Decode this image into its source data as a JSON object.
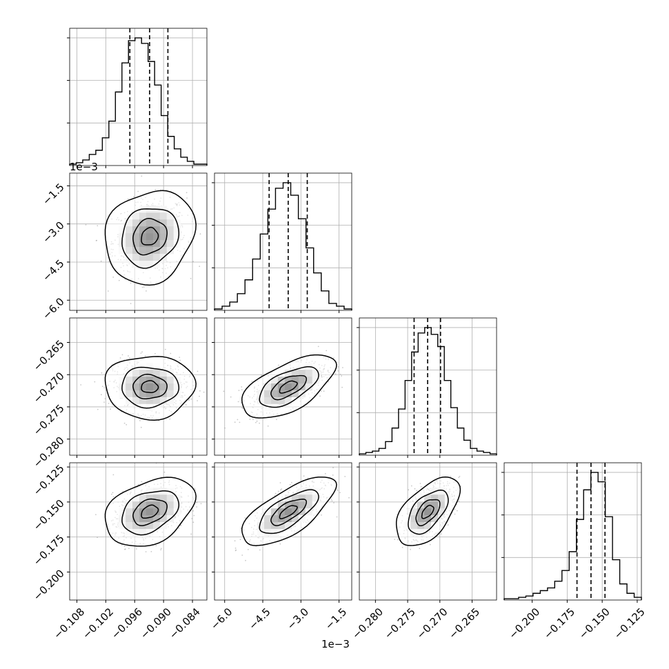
{
  "chart_data": {
    "type": "corner",
    "grid": true,
    "parameters": [
      {
        "range": [
          -0.1095,
          -0.081
        ],
        "ticks": [
          -0.108,
          -0.102,
          -0.096,
          -0.09,
          -0.084
        ],
        "tick_labels": [
          "−0.108",
          "−0.102",
          "−0.096",
          "−0.090",
          "−0.084"
        ],
        "quantiles": [
          -0.097,
          -0.0929,
          -0.0891
        ],
        "mean": -0.0929,
        "sd": 0.0038,
        "hist": [
          1,
          2,
          4,
          8,
          11,
          20,
          32,
          53,
          74,
          90,
          92,
          88,
          75,
          58,
          36,
          21,
          12,
          6,
          3,
          1,
          1
        ],
        "offset_label": ""
      },
      {
        "range": [
          -6.4,
          -1.0
        ],
        "ticks": [
          -6.0,
          -4.5,
          -3.0,
          -1.5
        ],
        "tick_labels": [
          "−6.0",
          "−4.5",
          "−3.0",
          "−1.5"
        ],
        "quantiles": [
          -4.25,
          -3.5,
          -2.75
        ],
        "mean": -3.5,
        "sd": 0.75,
        "hist": [
          1,
          3,
          6,
          12,
          22,
          37,
          55,
          73,
          88,
          92,
          83,
          66,
          45,
          27,
          14,
          5,
          3,
          1
        ],
        "offset_label": "1e−3"
      },
      {
        "range": [
          -0.2825,
          -0.2612
        ],
        "ticks": [
          -0.28,
          -0.275,
          -0.27,
          -0.265
        ],
        "tick_labels": [
          "−0.280",
          "−0.275",
          "−0.270",
          "−0.265"
        ],
        "quantiles": [
          -0.274,
          -0.2719,
          -0.2699
        ],
        "mean": -0.2719,
        "sd": 0.002,
        "hist": [
          1,
          2,
          3,
          5,
          10,
          20,
          34,
          55,
          76,
          90,
          94,
          89,
          80,
          55,
          35,
          20,
          11,
          5,
          3,
          2,
          1
        ],
        "offset_label": ""
      },
      {
        "range": [
          -0.22,
          -0.122
        ],
        "ticks": [
          -0.2,
          -0.175,
          -0.15,
          -0.125
        ],
        "tick_labels": [
          "−0.200",
          "−0.175",
          "−0.150",
          "−0.125"
        ],
        "quantiles": [
          -0.168,
          -0.158,
          -0.148
        ],
        "mean": -0.157,
        "sd": 0.01,
        "hist": [
          1,
          1,
          2,
          3,
          5,
          7,
          9,
          14,
          22,
          36,
          60,
          82,
          95,
          88,
          62,
          30,
          12,
          5,
          2
        ],
        "offset_label": ""
      }
    ],
    "pairs": [
      {
        "row": 1,
        "col": 0,
        "corr": 0.15,
        "contours": [
          0.95,
          0.7,
          0.35,
          0.1
        ]
      },
      {
        "row": 2,
        "col": 0,
        "corr": 0.0,
        "contours": [
          0.95,
          0.7,
          0.35,
          0.1
        ]
      },
      {
        "row": 2,
        "col": 1,
        "corr": 0.6,
        "contours": [
          0.95,
          0.7,
          0.35,
          0.1
        ]
      },
      {
        "row": 3,
        "col": 0,
        "corr": 0.35,
        "contours": [
          0.95,
          0.7,
          0.35,
          0.1
        ]
      },
      {
        "row": 3,
        "col": 1,
        "corr": 0.7,
        "contours": [
          0.95,
          0.7,
          0.35,
          0.1
        ]
      },
      {
        "row": 3,
        "col": 2,
        "corr": 0.55,
        "contours": [
          0.95,
          0.7,
          0.35,
          0.1
        ]
      }
    ],
    "histogram_y_ticks": [
      0.3,
      0.6,
      0.9
    ]
  }
}
